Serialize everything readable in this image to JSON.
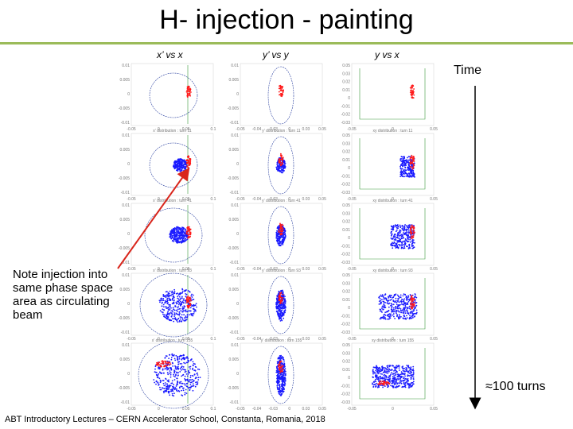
{
  "title": "H- injection - painting",
  "columns": [
    "x’ vs x",
    "y’ vs y",
    "y vs x"
  ],
  "time_label": "Time",
  "turns_label": "≈100 turns",
  "note": "Note injection into same phase space area as circulating beam",
  "footer": "ABT Introductory Lectures – CERN Accelerator School, Constanta, Romania, 2018",
  "colors": {
    "circulating": "#1a1aff",
    "injected": "#ff1a1a",
    "rule": "#9bbb59",
    "arrow": "#d9261c"
  },
  "panel_captions": {
    "xpx": [
      "",
      "x' distribution : turn 11",
      "x' distribution : turn 41",
      "x' distribution : turn 93",
      "x' distribution : turn 155"
    ],
    "ypy": [
      "",
      "y' distribution : turn 11",
      "y' distribution : turn 41",
      "y' distribution : turn 93",
      "y' distribution : turn 155"
    ],
    "yx": [
      "",
      "xy distribution : turn 11",
      "xy distribution : turn 41",
      "xy distribution : turn 93",
      "xy distribution : turn 155"
    ]
  },
  "x_ticks_xpx": [
    "-0.05",
    "0",
    "0.05",
    "0.1"
  ],
  "y_ticks_xpx": [
    "0.01",
    "0.005",
    "0",
    "-0.005",
    "-0.01"
  ],
  "x_ticks_ypy": [
    "-0.05",
    "-0.04",
    "-0.03",
    "0",
    "0.03",
    "0.05"
  ],
  "y_ticks_ypy": [
    "0.01",
    "0.005",
    "0",
    "-0.005",
    "-0.01"
  ],
  "x_ticks_yx": [
    "-0.05",
    "0",
    "0.05"
  ],
  "y_ticks_yx": [
    "0.05",
    "0.03",
    "0.02",
    "0.01",
    "0",
    "-0.01",
    "-0.02",
    "-0.03"
  ]
}
